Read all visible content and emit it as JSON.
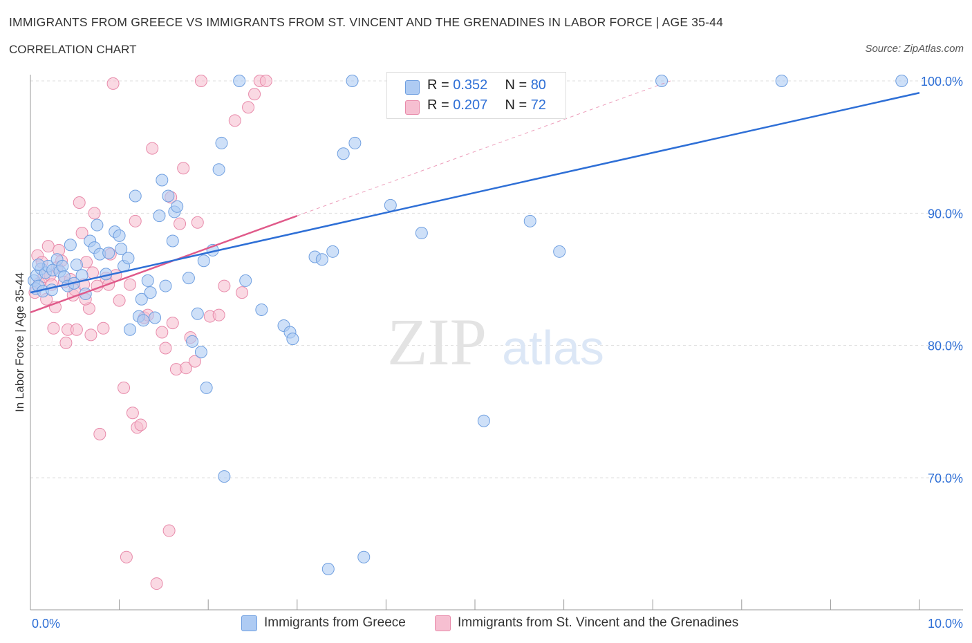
{
  "header": {
    "title": "IMMIGRANTS FROM GREECE VS IMMIGRANTS FROM ST. VINCENT AND THE GRENADINES IN LABOR FORCE | AGE 35-44",
    "subtitle": "CORRELATION CHART",
    "source": "Source: ZipAtlas.com"
  },
  "legend": {
    "greece": {
      "r_label": "R = ",
      "r_value": "0.352",
      "n_label": "N = ",
      "n_value": "80"
    },
    "svg": {
      "r_label": "R = ",
      "r_value": "0.207",
      "n_label": "N = ",
      "n_value": "72"
    }
  },
  "colors": {
    "greece_fill": "#aecbf3",
    "greece_stroke": "#6f9fe0",
    "greece_line": "#2e6fd6",
    "svg_fill": "#f6bfd1",
    "svg_stroke": "#e88aaa",
    "svg_line": "#e05a8a",
    "axis_label": "#2e6fd6",
    "grid": "#dddddd"
  },
  "watermark": {
    "zip": "ZIP",
    "atlas": "atlas"
  },
  "chart_data": {
    "type": "scatter",
    "title": "IMMIGRANTS FROM GREECE VS IMMIGRANTS FROM ST. VINCENT AND THE GRENADINES IN LABOR FORCE | AGE 35-44",
    "xlabel": "",
    "ylabel": "In Labor Force | Age 35-44",
    "xlim": [
      0,
      10
    ],
    "ylim": [
      60,
      100
    ],
    "x_tick_labels": [
      "0.0%",
      "10.0%"
    ],
    "y_ticks": [
      100,
      90,
      80,
      70
    ],
    "y_tick_labels": [
      "100.0%",
      "90.0%",
      "80.0%",
      "70.0%"
    ],
    "series": [
      {
        "name": "Immigrants from Greece",
        "r": 0.352,
        "n": 80,
        "trend": {
          "x0": 0.0,
          "y0": 84.0,
          "x1": 10.0,
          "y1": 99.1
        },
        "points": [
          [
            0.04,
            84.9
          ],
          [
            0.06,
            84.3
          ],
          [
            0.07,
            85.3
          ],
          [
            0.09,
            84.5
          ],
          [
            0.12,
            85.8
          ],
          [
            0.14,
            84.1
          ],
          [
            0.17,
            85.5
          ],
          [
            0.2,
            86.0
          ],
          [
            0.25,
            85.7
          ],
          [
            0.3,
            86.5
          ],
          [
            0.33,
            85.6
          ],
          [
            0.36,
            86.0
          ],
          [
            0.38,
            85.2
          ],
          [
            0.42,
            84.5
          ],
          [
            0.45,
            87.6
          ],
          [
            0.52,
            86.1
          ],
          [
            0.58,
            85.3
          ],
          [
            0.62,
            83.9
          ],
          [
            0.67,
            87.9
          ],
          [
            0.72,
            87.4
          ],
          [
            0.75,
            89.1
          ],
          [
            0.78,
            86.9
          ],
          [
            0.85,
            85.4
          ],
          [
            0.88,
            87.0
          ],
          [
            0.95,
            88.6
          ],
          [
            1.0,
            88.3
          ],
          [
            1.02,
            87.3
          ],
          [
            1.05,
            86.0
          ],
          [
            1.12,
            81.2
          ],
          [
            1.18,
            91.3
          ],
          [
            1.22,
            82.2
          ],
          [
            1.25,
            83.5
          ],
          [
            1.27,
            81.9
          ],
          [
            1.32,
            84.9
          ],
          [
            1.35,
            84.0
          ],
          [
            1.4,
            82.1
          ],
          [
            1.45,
            89.8
          ],
          [
            1.48,
            92.5
          ],
          [
            1.52,
            84.5
          ],
          [
            1.55,
            91.3
          ],
          [
            1.6,
            87.9
          ],
          [
            1.62,
            90.1
          ],
          [
            1.65,
            90.5
          ],
          [
            1.78,
            85.1
          ],
          [
            1.82,
            80.3
          ],
          [
            1.88,
            82.4
          ],
          [
            1.92,
            79.5
          ],
          [
            1.95,
            86.4
          ],
          [
            1.98,
            76.8
          ],
          [
            2.05,
            87.2
          ],
          [
            2.12,
            93.3
          ],
          [
            2.15,
            95.3
          ],
          [
            2.18,
            70.1
          ],
          [
            2.35,
            100.0
          ],
          [
            2.42,
            84.9
          ],
          [
            2.6,
            82.7
          ],
          [
            2.85,
            81.5
          ],
          [
            2.92,
            81.0
          ],
          [
            2.95,
            80.5
          ],
          [
            3.2,
            86.7
          ],
          [
            3.28,
            86.5
          ],
          [
            3.35,
            63.1
          ],
          [
            3.4,
            87.1
          ],
          [
            3.52,
            94.5
          ],
          [
            3.62,
            100.0
          ],
          [
            3.65,
            95.3
          ],
          [
            3.75,
            64.0
          ],
          [
            4.05,
            90.6
          ],
          [
            4.4,
            88.5
          ],
          [
            4.62,
            100.0
          ],
          [
            5.1,
            74.3
          ],
          [
            5.62,
            89.4
          ],
          [
            5.95,
            87.1
          ],
          [
            7.1,
            100.0
          ],
          [
            8.45,
            100.0
          ],
          [
            9.8,
            100.0
          ],
          [
            0.09,
            86.1
          ],
          [
            0.24,
            84.2
          ],
          [
            0.49,
            84.7
          ],
          [
            1.1,
            86.6
          ]
        ]
      },
      {
        "name": "Immigrants from St. Vincent and the Grenadines",
        "r": 0.207,
        "n": 72,
        "trend": {
          "x0": 0.0,
          "y0": 82.5,
          "x1": 3.0,
          "y1": 89.8
        },
        "trend_extension": {
          "x0": 3.0,
          "y0": 89.8,
          "x1": 7.2,
          "y1": 100.0
        },
        "points": [
          [
            0.05,
            84.0
          ],
          [
            0.08,
            86.8
          ],
          [
            0.1,
            84.7
          ],
          [
            0.13,
            86.3
          ],
          [
            0.15,
            85.2
          ],
          [
            0.18,
            83.5
          ],
          [
            0.2,
            87.5
          ],
          [
            0.22,
            85.3
          ],
          [
            0.24,
            84.6
          ],
          [
            0.26,
            81.3
          ],
          [
            0.28,
            82.9
          ],
          [
            0.3,
            85.9
          ],
          [
            0.32,
            87.2
          ],
          [
            0.35,
            86.4
          ],
          [
            0.38,
            84.8
          ],
          [
            0.4,
            80.2
          ],
          [
            0.42,
            81.2
          ],
          [
            0.45,
            85.0
          ],
          [
            0.48,
            83.8
          ],
          [
            0.5,
            84.2
          ],
          [
            0.52,
            81.2
          ],
          [
            0.55,
            90.8
          ],
          [
            0.58,
            88.5
          ],
          [
            0.6,
            84.6
          ],
          [
            0.63,
            86.3
          ],
          [
            0.66,
            82.8
          ],
          [
            0.68,
            80.8
          ],
          [
            0.7,
            85.5
          ],
          [
            0.72,
            90.0
          ],
          [
            0.75,
            84.5
          ],
          [
            0.78,
            73.3
          ],
          [
            0.82,
            81.3
          ],
          [
            0.85,
            85.1
          ],
          [
            0.88,
            84.6
          ],
          [
            0.9,
            86.9
          ],
          [
            0.93,
            99.8
          ],
          [
            0.96,
            85.3
          ],
          [
            1.0,
            83.4
          ],
          [
            1.05,
            76.8
          ],
          [
            1.08,
            64.0
          ],
          [
            1.12,
            84.6
          ],
          [
            1.15,
            74.9
          ],
          [
            1.18,
            89.4
          ],
          [
            1.2,
            73.8
          ],
          [
            1.24,
            74.0
          ],
          [
            1.28,
            82.1
          ],
          [
            1.32,
            82.3
          ],
          [
            1.37,
            94.9
          ],
          [
            1.42,
            62.0
          ],
          [
            1.48,
            81.0
          ],
          [
            1.52,
            79.8
          ],
          [
            1.56,
            66.0
          ],
          [
            1.6,
            81.7
          ],
          [
            1.64,
            78.2
          ],
          [
            1.68,
            89.2
          ],
          [
            1.72,
            93.4
          ],
          [
            1.75,
            78.3
          ],
          [
            1.8,
            80.6
          ],
          [
            1.85,
            78.8
          ],
          [
            1.88,
            89.3
          ],
          [
            1.92,
            100.0
          ],
          [
            2.02,
            82.2
          ],
          [
            2.12,
            82.3
          ],
          [
            2.18,
            84.5
          ],
          [
            2.3,
            97.0
          ],
          [
            2.38,
            84.0
          ],
          [
            2.45,
            98.0
          ],
          [
            2.52,
            99.0
          ],
          [
            2.58,
            100.0
          ],
          [
            2.65,
            100.0
          ],
          [
            0.62,
            83.5
          ],
          [
            1.58,
            91.2
          ]
        ]
      }
    ]
  },
  "bottom_legend": {
    "greece_label": "Immigrants from Greece",
    "svg_label": "Immigrants from St. Vincent and the Grenadines"
  }
}
